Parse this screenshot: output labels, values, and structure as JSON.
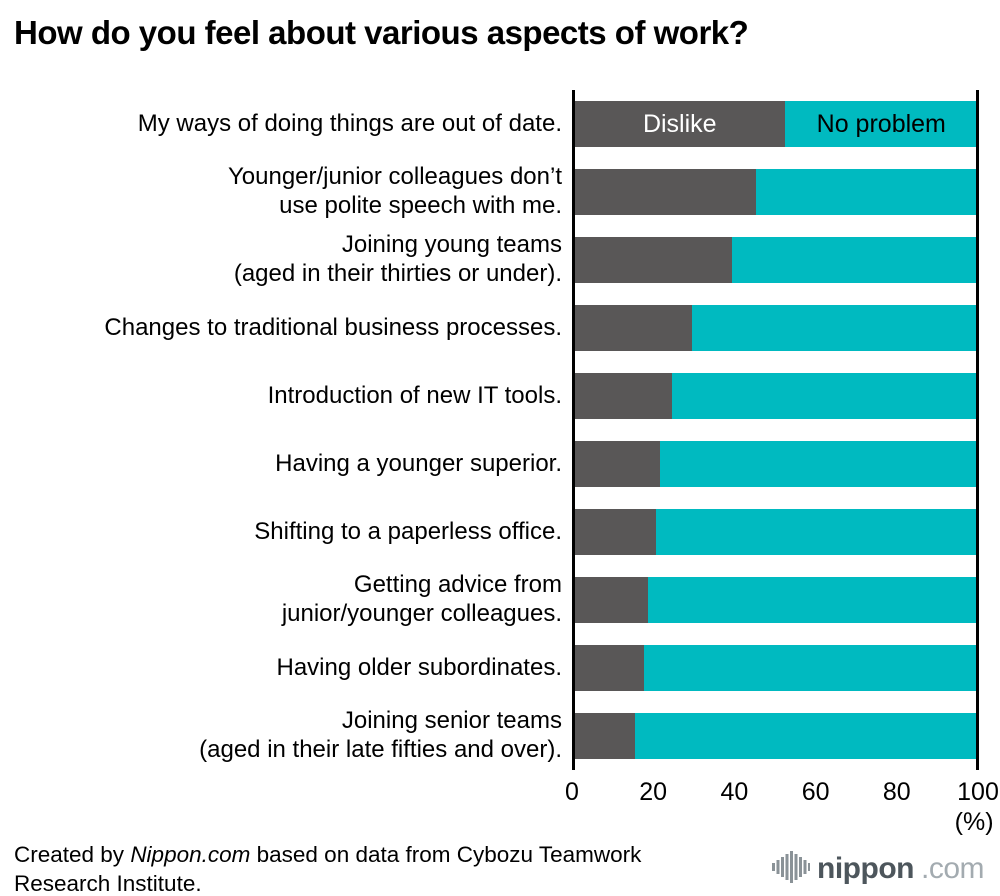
{
  "title": "How do you feel about various aspects of work?",
  "chart_data": {
    "type": "bar",
    "orientation": "horizontal_stacked",
    "categories": [
      "My ways of doing things are out of date.",
      "Younger/junior colleagues don’t\nuse polite speech with me.",
      "Joining young teams\n(aged in their thirties or under).",
      "Changes to traditional business processes.",
      "Introduction of new IT tools.",
      "Having a younger superior.",
      "Shifting to a paperless office.",
      "Getting advice from\njunior/younger colleagues.",
      "Having older subordinates.",
      "Joining senior teams\n(aged in their late fifties and over)."
    ],
    "series": [
      {
        "name": "Dislike",
        "color": "#595757",
        "values": [
          52,
          45,
          39,
          29,
          24,
          21,
          20,
          18,
          17,
          15
        ]
      },
      {
        "name": "No problem",
        "color": "#00bac0",
        "values": [
          48,
          55,
          61,
          71,
          76,
          79,
          80,
          82,
          83,
          85
        ]
      }
    ],
    "xlim": [
      0,
      100
    ],
    "x_ticks": [
      0,
      20,
      40,
      60,
      80,
      100
    ],
    "x_unit_label": "(%)",
    "legend_position": "inline-first-bar",
    "grid": false
  },
  "footer": {
    "credit_prefix": "Created by ",
    "credit_source": "Nippon.com",
    "credit_suffix": " based on data from Cybozu Teamwork Research Institute.",
    "logo": {
      "icon": "signal-bars-icon",
      "name": "nippon",
      "tld": ".com"
    }
  }
}
